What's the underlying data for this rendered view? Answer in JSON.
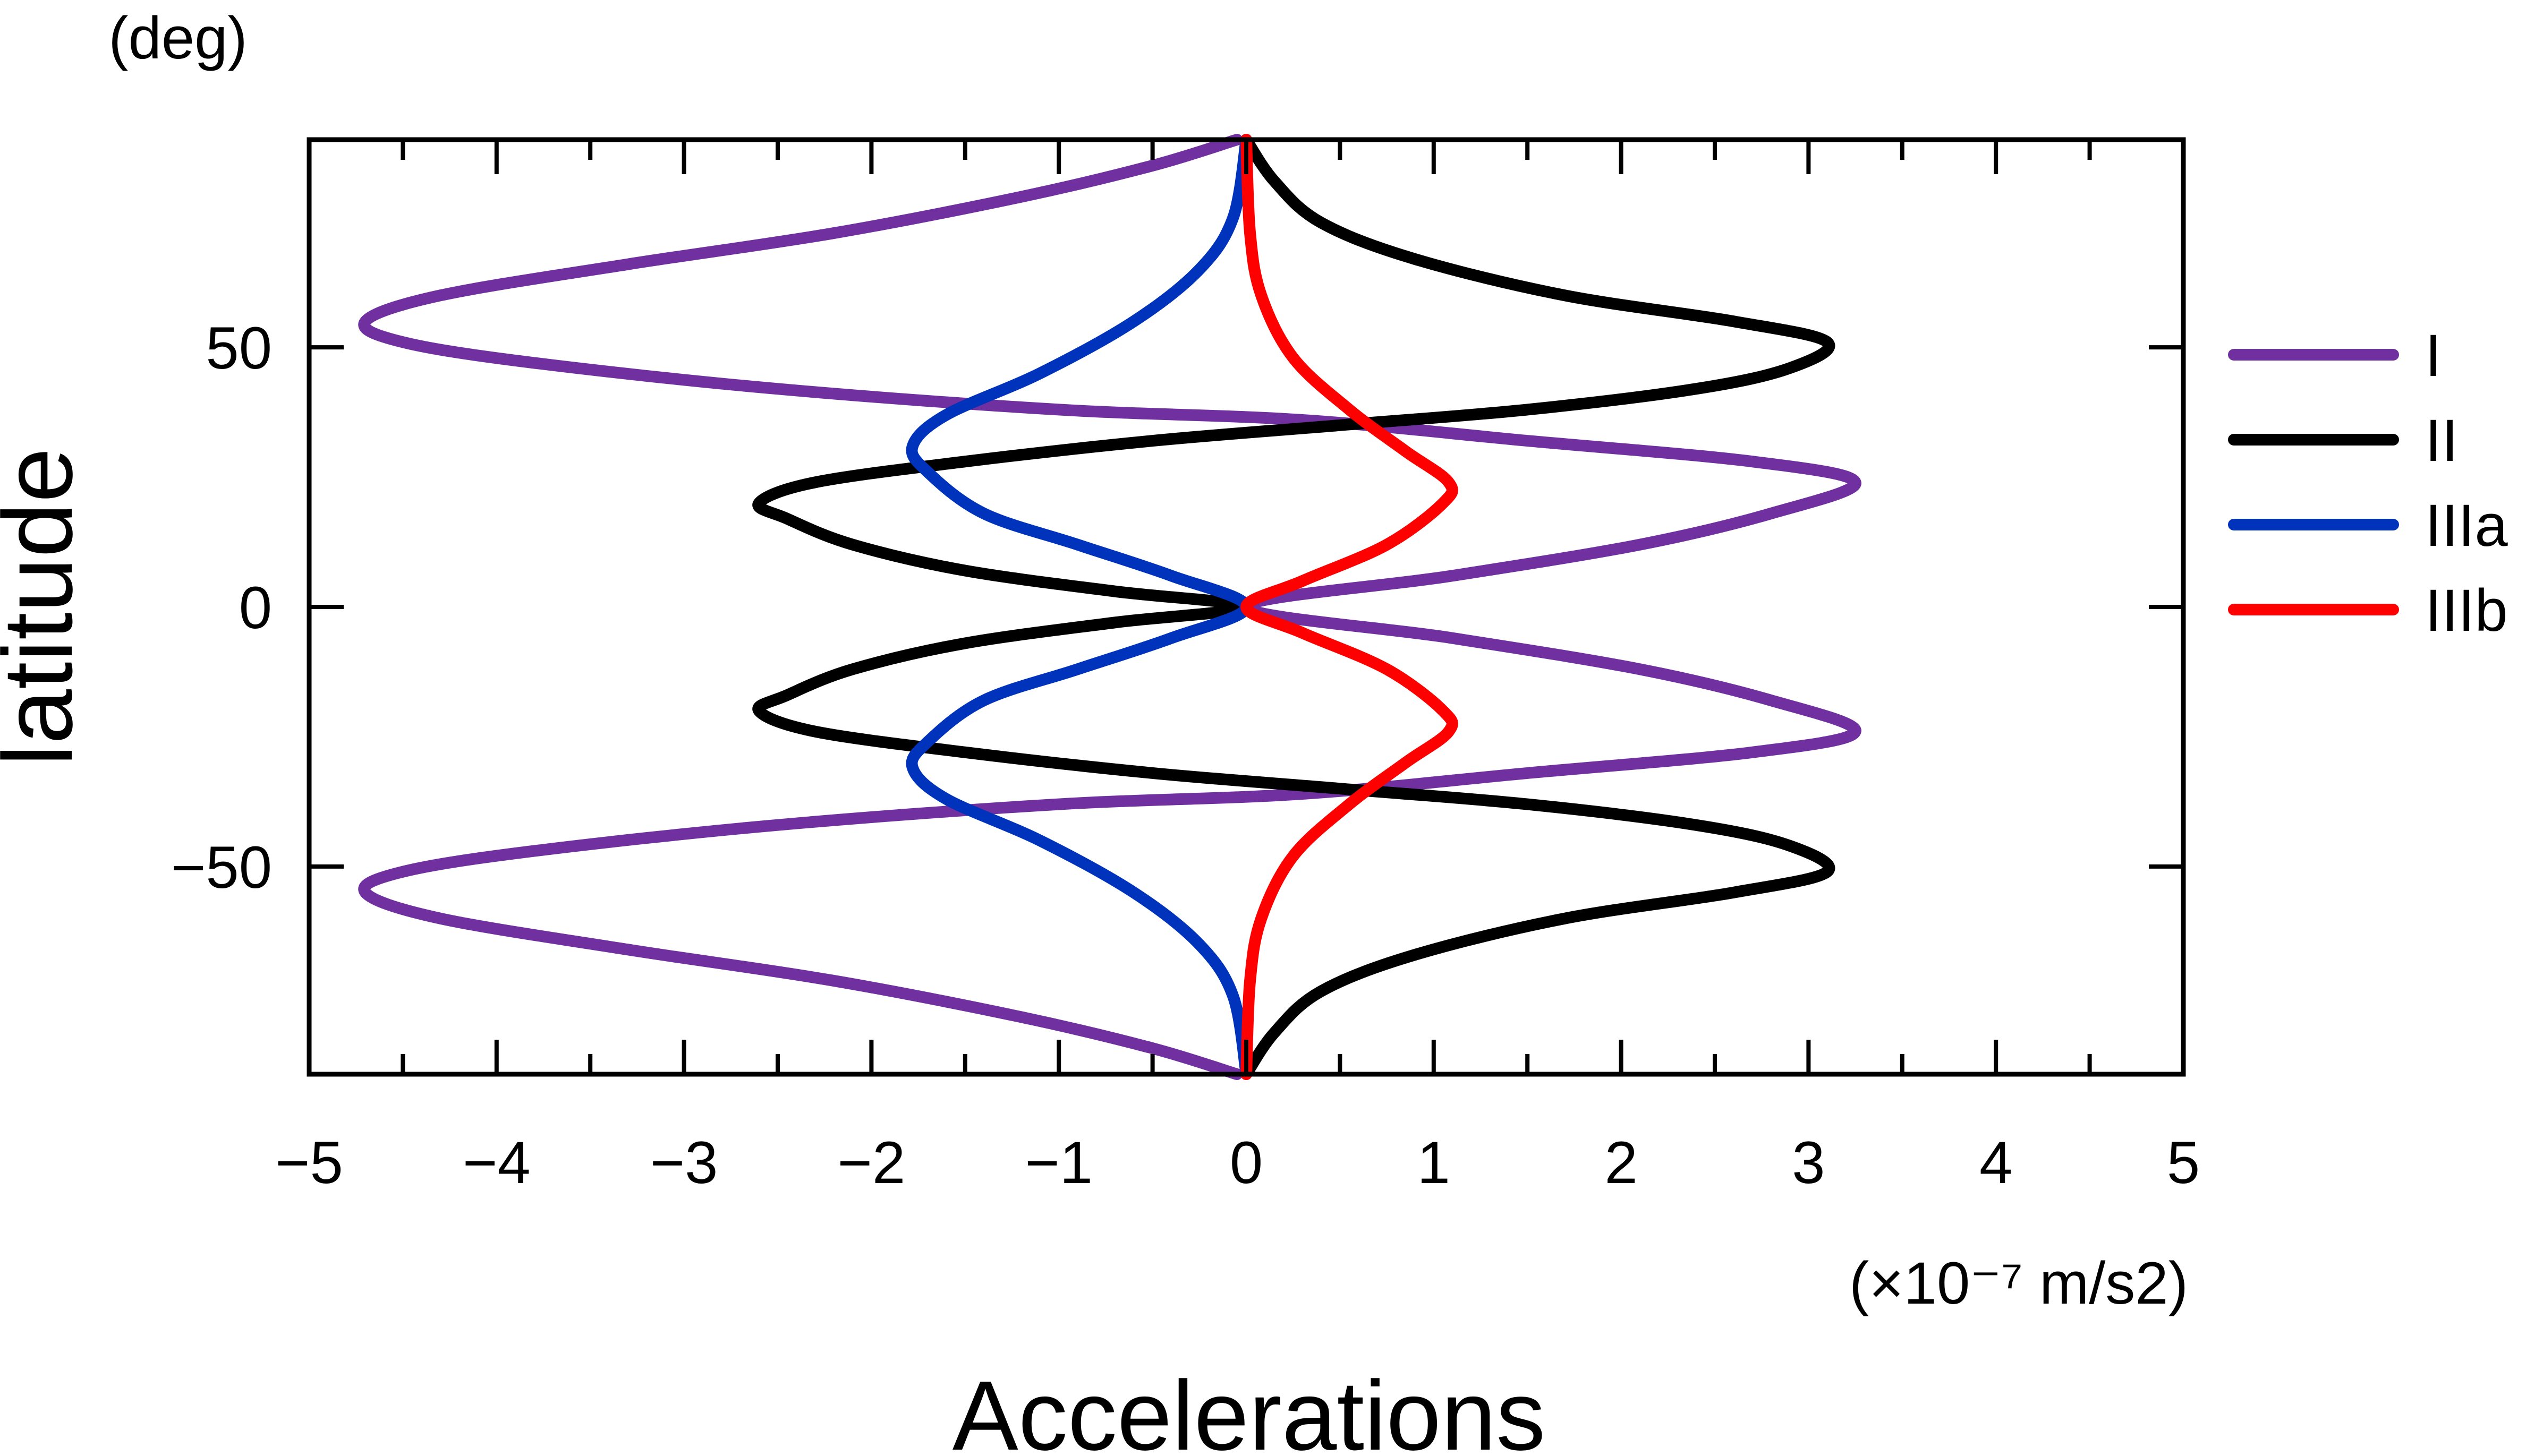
{
  "chart_data": {
    "type": "line",
    "title": "",
    "xlabel": "Accelerations",
    "ylabel": "latitude",
    "x_unit": "(×10⁻⁷ m/s2)",
    "y_unit": "(deg)",
    "xlim": [
      -5,
      5
    ],
    "ylim": [
      -90,
      90
    ],
    "x_ticks": [
      -5,
      -4,
      -3,
      -2,
      -1,
      0,
      1,
      2,
      3,
      4,
      5
    ],
    "y_ticks": [
      -50,
      0,
      50
    ],
    "x_tick_labels": [
      "−5",
      "−4",
      "−3",
      "−2",
      "−1",
      "0",
      "1",
      "2",
      "3",
      "4",
      "5"
    ],
    "y_tick_labels": [
      "−50",
      "0",
      "50"
    ],
    "grid": false,
    "legend": "right",
    "series": [
      {
        "name": "I",
        "color": "#7030A0",
        "points": [
          [
            0,
            0
          ],
          [
            1.1,
            6
          ],
          [
            2.1,
            12
          ],
          [
            2.8,
            18
          ],
          [
            3.25,
            24
          ],
          [
            2.7,
            28
          ],
          [
            1.5,
            32
          ],
          [
            0.3,
            36
          ],
          [
            -1,
            38
          ],
          [
            -2.5,
            42
          ],
          [
            -3.8,
            47
          ],
          [
            -4.5,
            51
          ],
          [
            -4.7,
            55
          ],
          [
            -4.3,
            60
          ],
          [
            -3.3,
            66
          ],
          [
            -2.2,
            72
          ],
          [
            -1.2,
            79
          ],
          [
            -0.5,
            85
          ],
          [
            -0.05,
            90
          ]
        ]
      },
      {
        "name": "II",
        "color": "#000000",
        "points": [
          [
            0,
            0
          ],
          [
            -0.7,
            3
          ],
          [
            -1.5,
            7
          ],
          [
            -2.1,
            12
          ],
          [
            -2.45,
            17
          ],
          [
            -2.6,
            20
          ],
          [
            -2.3,
            24
          ],
          [
            -1.5,
            28
          ],
          [
            -0.5,
            32
          ],
          [
            0.5,
            35
          ],
          [
            1.5,
            38
          ],
          [
            2.4,
            42
          ],
          [
            2.9,
            46
          ],
          [
            3.1,
            51
          ],
          [
            2.6,
            55
          ],
          [
            1.7,
            60
          ],
          [
            0.9,
            67
          ],
          [
            0.4,
            74
          ],
          [
            0.15,
            82
          ],
          [
            0,
            90
          ]
        ]
      },
      {
        "name": "IIIa",
        "color": "#0033BB",
        "points": [
          [
            0,
            0
          ],
          [
            -0.4,
            6
          ],
          [
            -0.9,
            12
          ],
          [
            -1.4,
            18
          ],
          [
            -1.7,
            26
          ],
          [
            -1.78,
            31
          ],
          [
            -1.6,
            37
          ],
          [
            -1.1,
            45
          ],
          [
            -0.6,
            55
          ],
          [
            -0.25,
            65
          ],
          [
            -0.07,
            75
          ],
          [
            0,
            90
          ]
        ]
      },
      {
        "name": "IIIb",
        "color": "#FF0000",
        "points": [
          [
            0,
            0
          ],
          [
            0.3,
            5
          ],
          [
            0.75,
            12
          ],
          [
            1.05,
            20
          ],
          [
            1.08,
            24
          ],
          [
            0.85,
            30
          ],
          [
            0.55,
            38
          ],
          [
            0.25,
            48
          ],
          [
            0.08,
            60
          ],
          [
            0.02,
            72
          ],
          [
            0,
            90
          ]
        ]
      }
    ]
  }
}
